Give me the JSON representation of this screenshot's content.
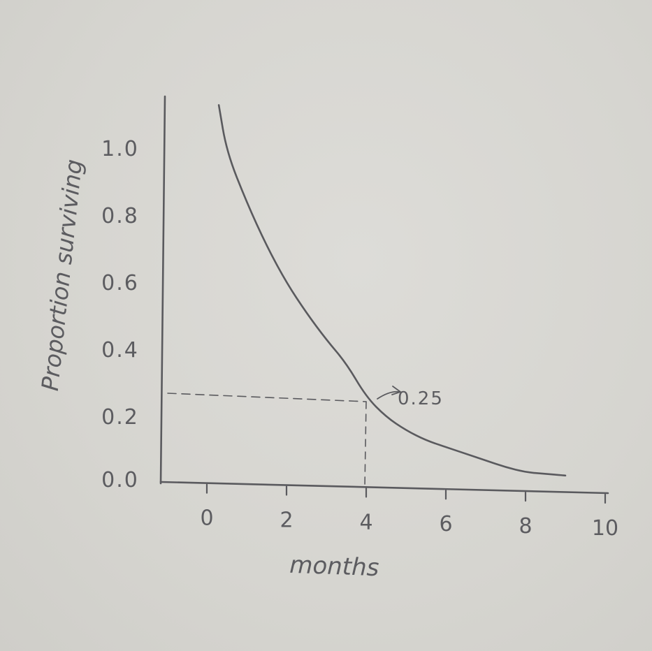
{
  "chart_data": {
    "type": "line",
    "title": "",
    "xlabel": "months",
    "ylabel": "Proportion surviving",
    "x_ticks": [
      "0",
      "2",
      "4",
      "6",
      "8",
      "10"
    ],
    "y_ticks": [
      "0.0",
      "0.2",
      "0.4",
      "0.6",
      "0.8",
      "1.0"
    ],
    "xlim": [
      0,
      10
    ],
    "ylim": [
      0,
      1
    ],
    "grid": false,
    "series": [
      {
        "x": [
          0.3,
          0.5,
          1.0,
          1.5,
          2.0,
          2.5,
          3.0,
          3.5,
          4.0,
          4.5,
          5.0,
          5.5,
          6.0,
          6.5,
          7.0,
          7.5,
          8.0,
          8.5,
          9.0
        ],
        "y": [
          1.12,
          0.98,
          0.83,
          0.7,
          0.59,
          0.5,
          0.42,
          0.35,
          0.25,
          0.19,
          0.15,
          0.12,
          0.1,
          0.08,
          0.06,
          0.04,
          0.025,
          0.02,
          0.015
        ]
      }
    ],
    "annotations": [
      {
        "x": 4,
        "y": 0.25,
        "text": "0.25"
      }
    ]
  }
}
